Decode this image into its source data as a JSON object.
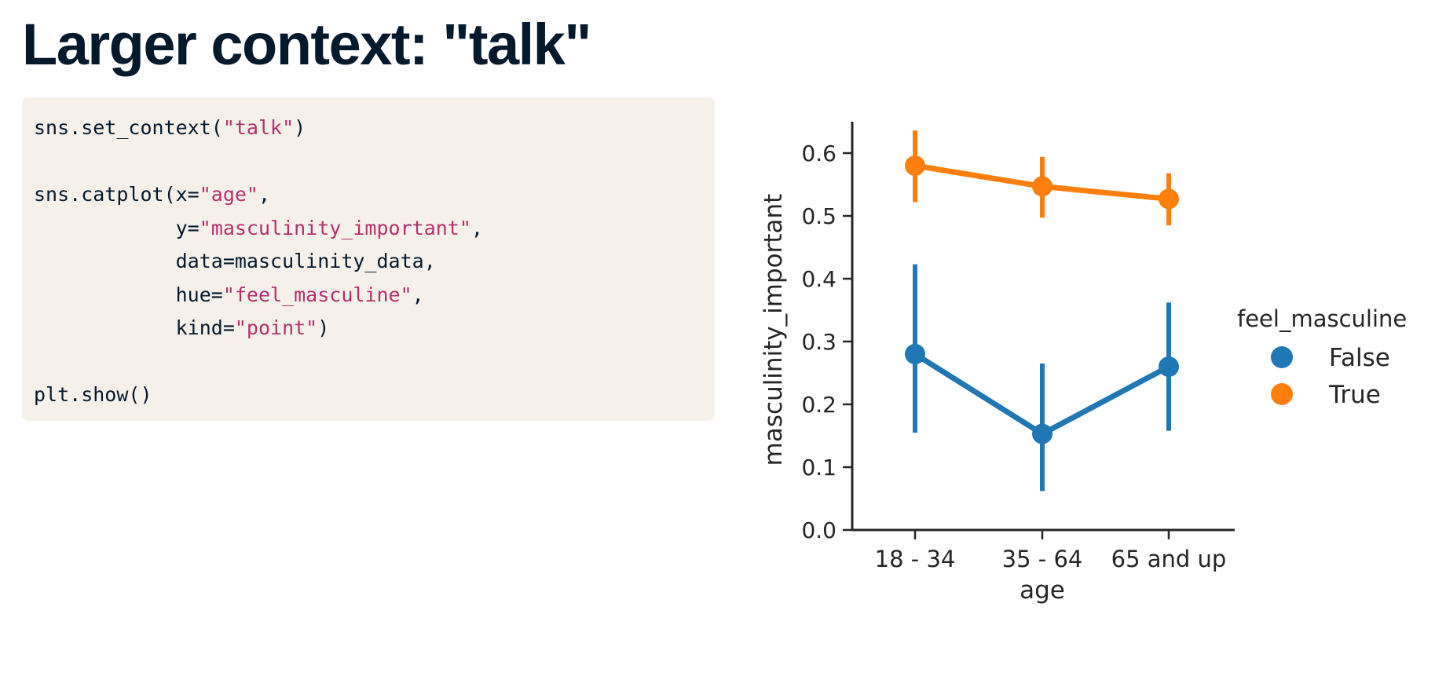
{
  "slide": {
    "title": "Larger context: \"talk\""
  },
  "code": {
    "lines": [
      [
        {
          "t": "sns.set_context("
        },
        {
          "t": "\"talk\"",
          "s": "string"
        },
        {
          "t": ")"
        }
      ],
      [],
      [
        {
          "t": "sns.catplot(x="
        },
        {
          "t": "\"age\"",
          "s": "string"
        },
        {
          "t": ","
        }
      ],
      [
        {
          "t": "            y="
        },
        {
          "t": "\"masculinity_important\"",
          "s": "string"
        },
        {
          "t": ","
        }
      ],
      [
        {
          "t": "            data=masculinity_data,"
        }
      ],
      [
        {
          "t": "            hue="
        },
        {
          "t": "\"feel_masculine\"",
          "s": "string"
        },
        {
          "t": ","
        }
      ],
      [
        {
          "t": "            kind="
        },
        {
          "t": "\"point\"",
          "s": "string"
        },
        {
          "t": ")"
        }
      ],
      [],
      [
        {
          "t": "plt.show()"
        }
      ]
    ]
  },
  "chart_data": {
    "type": "line",
    "xlabel": "age",
    "ylabel": "masculinity_important",
    "categories": [
      "18 - 34",
      "35 - 64",
      "65 and up"
    ],
    "ylim": [
      0.0,
      0.65
    ],
    "yticks": [
      0.0,
      0.1,
      0.2,
      0.3,
      0.4,
      0.5,
      0.6
    ],
    "ytick_labels": [
      "0.0",
      "0.1",
      "0.2",
      "0.3",
      "0.4",
      "0.5",
      "0.6"
    ],
    "grid": false,
    "legend_position": "right",
    "legend_title": "feel_masculine",
    "series": [
      {
        "name": "False",
        "color": "#1f77b4",
        "values": [
          0.28,
          0.153,
          0.26
        ],
        "ci_low": [
          0.155,
          0.062,
          0.158
        ],
        "ci_high": [
          0.423,
          0.265,
          0.362
        ]
      },
      {
        "name": "True",
        "color": "#ff7f0e",
        "values": [
          0.58,
          0.547,
          0.527
        ],
        "ci_low": [
          0.522,
          0.497,
          0.485
        ],
        "ci_high": [
          0.636,
          0.594,
          0.568
        ]
      }
    ]
  }
}
